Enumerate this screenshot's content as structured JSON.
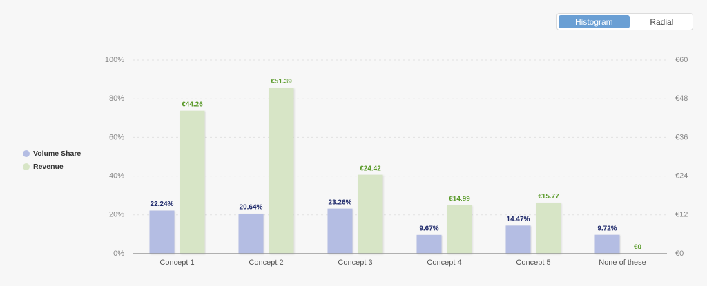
{
  "view_toggle": [
    "Histogram",
    "Radial"
  ],
  "chart_data": {
    "type": "bar",
    "categories": [
      "Concept 1",
      "Concept 2",
      "Concept 3",
      "Concept 4",
      "Concept 5",
      "None of these"
    ],
    "series": [
      {
        "name": "Volume Share",
        "color": "#b4bde3",
        "label_color": "#1f2a6b",
        "axis": "y",
        "values": [
          22.24,
          20.64,
          23.26,
          9.67,
          14.47,
          9.72
        ],
        "value_labels": [
          "22.24%",
          "20.64%",
          "23.26%",
          "9.67%",
          "14.47%",
          "9.72%"
        ]
      },
      {
        "name": "Revenue",
        "color": "#d7e5c6",
        "label_color": "#5a9a2a",
        "axis": "y2",
        "values": [
          44.26,
          51.39,
          24.42,
          14.99,
          15.77,
          0
        ],
        "value_labels": [
          "€44.26",
          "€51.39",
          "€24.42",
          "€14.99",
          "€15.77",
          "€0"
        ]
      }
    ],
    "ylim": [
      0,
      100
    ],
    "yticks": [
      {
        "value": 0,
        "label": "0%"
      },
      {
        "value": 20,
        "label": "20%"
      },
      {
        "value": 40,
        "label": "40%"
      },
      {
        "value": 60,
        "label": "60%"
      },
      {
        "value": 80,
        "label": "80%"
      },
      {
        "value": 100,
        "label": "100%"
      }
    ],
    "y2lim": [
      0,
      60
    ],
    "y2ticks": [
      {
        "value": 0,
        "label": "€0"
      },
      {
        "value": 12,
        "label": "€12"
      },
      {
        "value": 24,
        "label": "€24"
      },
      {
        "value": 36,
        "label": "€36"
      },
      {
        "value": 48,
        "label": "€48"
      },
      {
        "value": 60,
        "label": "€60"
      }
    ],
    "grid": true,
    "legend": "left"
  }
}
